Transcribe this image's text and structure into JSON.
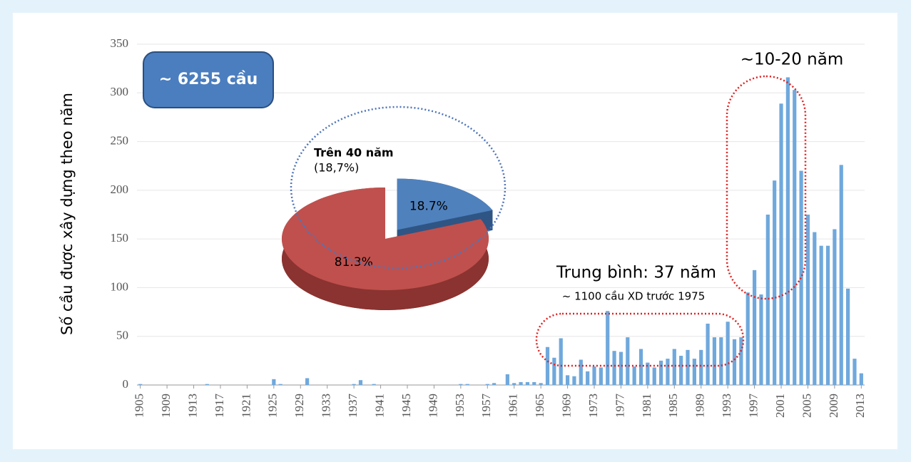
{
  "chart_data": [
    {
      "type": "bar",
      "y_label": "Số cầu được xây dựng theo năm",
      "categories": [
        "1905",
        null,
        null,
        null,
        "1909",
        null,
        null,
        null,
        "1913",
        null,
        null,
        null,
        "1917",
        null,
        null,
        null,
        "1921",
        null,
        null,
        null,
        "1925",
        null,
        null,
        null,
        "1929",
        null,
        null,
        null,
        "1933",
        null,
        null,
        null,
        "1937",
        null,
        null,
        null,
        "1941",
        null,
        null,
        null,
        "1945",
        null,
        null,
        null,
        "1949",
        null,
        null,
        null,
        "1953",
        null,
        null,
        null,
        "1957",
        null,
        null,
        null,
        "1961",
        null,
        null,
        null,
        "1965",
        null,
        null,
        null,
        "1969",
        null,
        null,
        null,
        "1973",
        null,
        null,
        null,
        "1977",
        null,
        null,
        null,
        "1981",
        null,
        null,
        null,
        "1985",
        null,
        null,
        null,
        "1989",
        null,
        null,
        null,
        "1993",
        null,
        null,
        null,
        "1997",
        null,
        null,
        null,
        "2001",
        null,
        null,
        null,
        "2005",
        null,
        null,
        null,
        "2009",
        null,
        null,
        null,
        "2013"
      ],
      "values": [
        1,
        0,
        0,
        0,
        0,
        0,
        0,
        0,
        0,
        0,
        1,
        0,
        0,
        0,
        0,
        0,
        0,
        0,
        0,
        0,
        6,
        1,
        0,
        0,
        0,
        7,
        0,
        0,
        0,
        0,
        0,
        0,
        1,
        5,
        0,
        1,
        0,
        0,
        0,
        0,
        0,
        0,
        0,
        0,
        0,
        0,
        0,
        0,
        1,
        1,
        0,
        0,
        1,
        2,
        0,
        11,
        2,
        3,
        3,
        3,
        2,
        39,
        28,
        48,
        10,
        9,
        26,
        14,
        19,
        18,
        76,
        35,
        34,
        49,
        19,
        37,
        23,
        18,
        25,
        27,
        37,
        30,
        36,
        27,
        36,
        63,
        49,
        49,
        65,
        47,
        49,
        95,
        118,
        93,
        175,
        210,
        289,
        316,
        303,
        220,
        175,
        157,
        143,
        143,
        160,
        226,
        99,
        27,
        12
      ],
      "color": "#6fa8dc",
      "ylim": [
        0,
        350
      ],
      "yticks": [
        0,
        50,
        100,
        150,
        200,
        250,
        300,
        350
      ],
      "annotations": [
        "~ 6255 cầu",
        "Trung bình: 37 năm",
        "~ 1100 cầu XD trước 1975",
        "~10-20 năm"
      ]
    },
    {
      "type": "pie",
      "values": [
        18.7,
        81.3
      ],
      "value_labels": [
        "18.7%",
        "81.3%"
      ],
      "colors": [
        "#4f81bd",
        "#c0504d"
      ],
      "annotations": [
        "Trên 40 năm",
        "(18,7%)"
      ]
    }
  ]
}
